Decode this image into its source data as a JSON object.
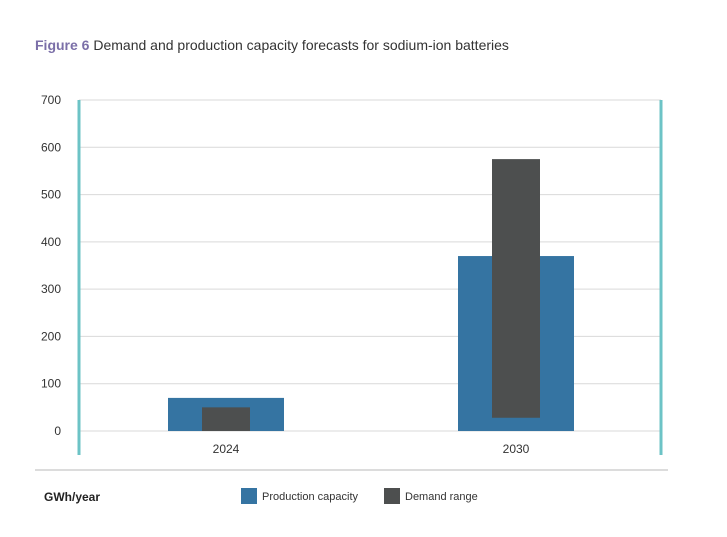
{
  "chart_data": {
    "type": "bar",
    "title_prefix": "Figure 6",
    "title": "Demand and production capacity forecasts for sodium-ion batteries",
    "ylabel": "GWh/year",
    "xlabel": "",
    "categories": [
      "2024",
      "2030"
    ],
    "ylim": [
      0,
      700
    ],
    "yticks": [
      0,
      100,
      200,
      300,
      400,
      500,
      600,
      700
    ],
    "grid": true,
    "legend_placement": "bottom",
    "series": [
      {
        "name": "Production capacity",
        "color": "#3574a2",
        "values": [
          70,
          370
        ]
      },
      {
        "name": "Demand range",
        "color": "#4d4f4f",
        "ranges": [
          [
            0,
            50
          ],
          [
            28,
            575
          ]
        ]
      }
    ],
    "axis_color": "#6cc3c6"
  }
}
